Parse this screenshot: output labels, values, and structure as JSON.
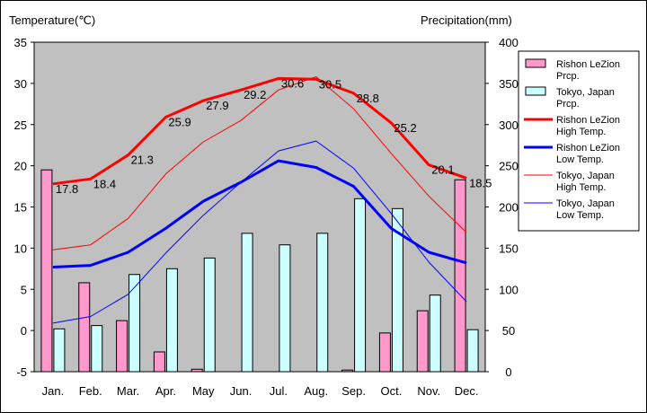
{
  "chart_data": {
    "type": "bar+line",
    "title": "",
    "y_left_label": "Temperature(℃)",
    "y_right_label": "Precipitation(mm)",
    "y_left_range": [
      -5,
      35
    ],
    "y_left_ticks": [
      "35",
      "30",
      "25",
      "20",
      "15",
      "10",
      "5",
      "0",
      "-5"
    ],
    "y_right_range": [
      0,
      400
    ],
    "y_right_ticks": [
      "400",
      "350",
      "300",
      "250",
      "200",
      "150",
      "100",
      "50",
      "0"
    ],
    "categories": [
      "Jan.",
      "Feb.",
      "Mar.",
      "Apr.",
      "May",
      "Jun.",
      "Jul.",
      "Aug.",
      "Sep.",
      "Oct.",
      "Nov.",
      "Dec."
    ],
    "grid": false,
    "legend_position": "right",
    "bar_series": [
      {
        "name": "Rishon LeZion Prcp.",
        "color": "#ff99cc",
        "values": [
          245,
          108,
          62,
          24,
          3,
          0,
          0,
          0,
          2,
          47,
          74,
          233
        ]
      },
      {
        "name": "Tokyo, Japan Prcp.",
        "color": "#ccffff",
        "values": [
          52,
          56,
          118,
          125,
          138,
          168,
          154,
          168,
          210,
          198,
          93,
          51
        ]
      }
    ],
    "line_series": [
      {
        "name": "Rishon LeZion High Temp.",
        "color": "#ff0000",
        "width": 3,
        "values": [
          17.8,
          18.4,
          21.3,
          25.9,
          27.9,
          29.2,
          30.6,
          30.5,
          28.8,
          25.2,
          20.1,
          18.5
        ],
        "labels": [
          "17.8",
          "18.4",
          "21.3",
          "25.9",
          "27.9",
          "29.2",
          "30.6",
          "30.5",
          "28.8",
          "25.2",
          "20.1",
          "18.5"
        ]
      },
      {
        "name": "Rishon LeZion Low Temp.",
        "color": "#0000ff",
        "width": 3,
        "values": [
          7.7,
          7.9,
          9.5,
          12.4,
          15.7,
          18.0,
          20.6,
          19.8,
          17.5,
          12.4,
          9.5,
          8.2
        ]
      },
      {
        "name": "Tokyo, Japan High Temp.",
        "color": "#ff0000",
        "width": 1,
        "values": [
          9.8,
          10.4,
          13.6,
          19.0,
          22.9,
          25.5,
          29.2,
          30.8,
          26.9,
          21.5,
          16.3,
          11.9
        ]
      },
      {
        "name": "Tokyo, Japan Low Temp.",
        "color": "#0000ff",
        "width": 1,
        "values": [
          0.9,
          1.7,
          4.4,
          9.4,
          14.0,
          18.0,
          21.8,
          23.0,
          19.7,
          14.2,
          8.3,
          3.5
        ]
      }
    ],
    "legend": [
      {
        "label_line1": "Rishon LeZion",
        "label_line2": "Prcp."
      },
      {
        "label_line1": "Tokyo, Japan",
        "label_line2": "Prcp."
      },
      {
        "label_line1": "Rishon LeZion",
        "label_line2": "High Temp."
      },
      {
        "label_line1": "Rishon LeZion",
        "label_line2": "Low Temp."
      },
      {
        "label_line1": "Tokyo, Japan",
        "label_line2": "High Temp."
      },
      {
        "label_line1": "Tokyo, Japan",
        "label_line2": "Low Temp."
      }
    ],
    "colors": {
      "plot_bg": "#c0c0c0",
      "frame": "#000000"
    }
  }
}
